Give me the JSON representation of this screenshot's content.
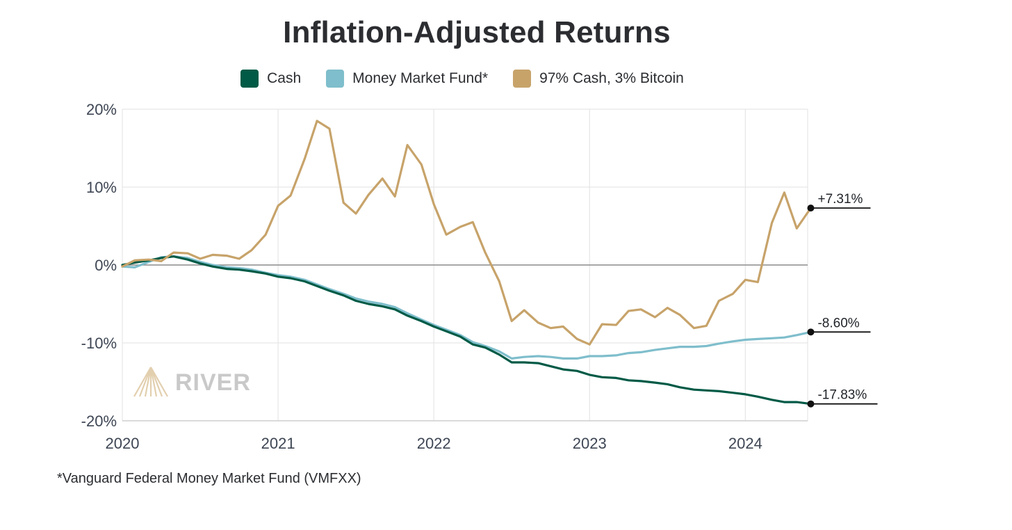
{
  "chart_data": {
    "type": "line",
    "title": "Inflation-Adjusted Returns",
    "xlabel": "",
    "ylabel": "",
    "ylim": [
      -20,
      20
    ],
    "xlim": [
      2020.0,
      2024.42
    ],
    "yticks": [
      {
        "value": 20,
        "label": "20%"
      },
      {
        "value": 10,
        "label": "10%"
      },
      {
        "value": 0,
        "label": "0%"
      },
      {
        "value": -10,
        "label": "-10%"
      },
      {
        "value": -20,
        "label": "-20%"
      }
    ],
    "xticks": [
      {
        "value": 2020,
        "label": "2020"
      },
      {
        "value": 2021,
        "label": "2021"
      },
      {
        "value": 2022,
        "label": "2022"
      },
      {
        "value": 2023,
        "label": "2023"
      },
      {
        "value": 2024,
        "label": "2024"
      }
    ],
    "legend_position": "top-center",
    "series": [
      {
        "name": "Cash",
        "color": "#005a46",
        "end_label": "-17.83%",
        "points": [
          [
            2020.0,
            0.0
          ],
          [
            2020.08,
            0.3
          ],
          [
            2020.17,
            0.6
          ],
          [
            2020.25,
            0.9
          ],
          [
            2020.33,
            1.1
          ],
          [
            2020.42,
            0.7
          ],
          [
            2020.5,
            0.2
          ],
          [
            2020.58,
            -0.2
          ],
          [
            2020.67,
            -0.5
          ],
          [
            2020.75,
            -0.6
          ],
          [
            2020.83,
            -0.8
          ],
          [
            2020.92,
            -1.1
          ],
          [
            2021.0,
            -1.5
          ],
          [
            2021.08,
            -1.7
          ],
          [
            2021.17,
            -2.1
          ],
          [
            2021.25,
            -2.7
          ],
          [
            2021.33,
            -3.3
          ],
          [
            2021.42,
            -3.9
          ],
          [
            2021.5,
            -4.6
          ],
          [
            2021.58,
            -5.0
          ],
          [
            2021.67,
            -5.3
          ],
          [
            2021.75,
            -5.7
          ],
          [
            2021.83,
            -6.5
          ],
          [
            2021.92,
            -7.2
          ],
          [
            2022.0,
            -7.9
          ],
          [
            2022.08,
            -8.5
          ],
          [
            2022.17,
            -9.2
          ],
          [
            2022.25,
            -10.2
          ],
          [
            2022.33,
            -10.6
          ],
          [
            2022.42,
            -11.5
          ],
          [
            2022.5,
            -12.5
          ],
          [
            2022.58,
            -12.5
          ],
          [
            2022.67,
            -12.6
          ],
          [
            2022.75,
            -13.0
          ],
          [
            2022.83,
            -13.4
          ],
          [
            2022.92,
            -13.6
          ],
          [
            2023.0,
            -14.1
          ],
          [
            2023.08,
            -14.4
          ],
          [
            2023.17,
            -14.5
          ],
          [
            2023.25,
            -14.8
          ],
          [
            2023.33,
            -14.9
          ],
          [
            2023.42,
            -15.1
          ],
          [
            2023.5,
            -15.3
          ],
          [
            2023.58,
            -15.7
          ],
          [
            2023.67,
            -16.0
          ],
          [
            2023.75,
            -16.1
          ],
          [
            2023.83,
            -16.2
          ],
          [
            2023.92,
            -16.4
          ],
          [
            2024.0,
            -16.6
          ],
          [
            2024.08,
            -16.9
          ],
          [
            2024.17,
            -17.3
          ],
          [
            2024.25,
            -17.6
          ],
          [
            2024.33,
            -17.6
          ],
          [
            2024.42,
            -17.83
          ]
        ]
      },
      {
        "name": "Money Market Fund*",
        "color": "#7fbecc",
        "end_label": "-8.60%",
        "points": [
          [
            2020.0,
            -0.2
          ],
          [
            2020.08,
            -0.3
          ],
          [
            2020.17,
            0.4
          ],
          [
            2020.25,
            1.0
          ],
          [
            2020.33,
            1.1
          ],
          [
            2020.42,
            0.9
          ],
          [
            2020.5,
            0.4
          ],
          [
            2020.58,
            0.0
          ],
          [
            2020.67,
            -0.3
          ],
          [
            2020.75,
            -0.4
          ],
          [
            2020.83,
            -0.6
          ],
          [
            2020.92,
            -1.0
          ],
          [
            2021.0,
            -1.3
          ],
          [
            2021.08,
            -1.5
          ],
          [
            2021.17,
            -1.9
          ],
          [
            2021.25,
            -2.5
          ],
          [
            2021.33,
            -3.1
          ],
          [
            2021.42,
            -3.7
          ],
          [
            2021.5,
            -4.3
          ],
          [
            2021.58,
            -4.7
          ],
          [
            2021.67,
            -5.0
          ],
          [
            2021.75,
            -5.4
          ],
          [
            2021.83,
            -6.2
          ],
          [
            2021.92,
            -7.0
          ],
          [
            2022.0,
            -7.7
          ],
          [
            2022.08,
            -8.3
          ],
          [
            2022.17,
            -9.0
          ],
          [
            2022.25,
            -9.9
          ],
          [
            2022.33,
            -10.4
          ],
          [
            2022.42,
            -11.1
          ],
          [
            2022.5,
            -12.0
          ],
          [
            2022.58,
            -11.8
          ],
          [
            2022.67,
            -11.7
          ],
          [
            2022.75,
            -11.8
          ],
          [
            2022.83,
            -12.0
          ],
          [
            2022.92,
            -12.0
          ],
          [
            2023.0,
            -11.7
          ],
          [
            2023.08,
            -11.7
          ],
          [
            2023.17,
            -11.6
          ],
          [
            2023.25,
            -11.3
          ],
          [
            2023.33,
            -11.2
          ],
          [
            2023.42,
            -10.9
          ],
          [
            2023.5,
            -10.7
          ],
          [
            2023.58,
            -10.5
          ],
          [
            2023.67,
            -10.5
          ],
          [
            2023.75,
            -10.4
          ],
          [
            2023.83,
            -10.1
          ],
          [
            2023.92,
            -9.8
          ],
          [
            2024.0,
            -9.6
          ],
          [
            2024.08,
            -9.5
          ],
          [
            2024.17,
            -9.4
          ],
          [
            2024.25,
            -9.3
          ],
          [
            2024.33,
            -9.0
          ],
          [
            2024.42,
            -8.6
          ]
        ]
      },
      {
        "name": "97% Cash, 3% Bitcoin",
        "color": "#c7a36a",
        "end_label": "+7.31%",
        "points": [
          [
            2020.0,
            -0.2
          ],
          [
            2020.08,
            0.6
          ],
          [
            2020.17,
            0.7
          ],
          [
            2020.25,
            0.5
          ],
          [
            2020.33,
            1.6
          ],
          [
            2020.42,
            1.5
          ],
          [
            2020.5,
            0.8
          ],
          [
            2020.58,
            1.3
          ],
          [
            2020.67,
            1.2
          ],
          [
            2020.75,
            0.8
          ],
          [
            2020.83,
            1.9
          ],
          [
            2020.92,
            3.9
          ],
          [
            2021.0,
            7.6
          ],
          [
            2021.08,
            8.9
          ],
          [
            2021.17,
            13.6
          ],
          [
            2021.25,
            18.5
          ],
          [
            2021.33,
            17.5
          ],
          [
            2021.42,
            8.0
          ],
          [
            2021.5,
            6.6
          ],
          [
            2021.58,
            9.0
          ],
          [
            2021.67,
            11.1
          ],
          [
            2021.75,
            8.8
          ],
          [
            2021.83,
            15.4
          ],
          [
            2021.92,
            12.9
          ],
          [
            2022.0,
            7.8
          ],
          [
            2022.08,
            3.9
          ],
          [
            2022.17,
            4.9
          ],
          [
            2022.25,
            5.5
          ],
          [
            2022.33,
            1.6
          ],
          [
            2022.42,
            -2.1
          ],
          [
            2022.5,
            -7.2
          ],
          [
            2022.58,
            -5.8
          ],
          [
            2022.67,
            -7.4
          ],
          [
            2022.75,
            -8.1
          ],
          [
            2022.83,
            -7.9
          ],
          [
            2022.92,
            -9.5
          ],
          [
            2023.0,
            -10.2
          ],
          [
            2023.08,
            -7.6
          ],
          [
            2023.17,
            -7.7
          ],
          [
            2023.25,
            -5.9
          ],
          [
            2023.33,
            -5.7
          ],
          [
            2023.42,
            -6.7
          ],
          [
            2023.5,
            -5.5
          ],
          [
            2023.58,
            -6.4
          ],
          [
            2023.67,
            -8.1
          ],
          [
            2023.75,
            -7.8
          ],
          [
            2023.83,
            -4.6
          ],
          [
            2023.92,
            -3.7
          ],
          [
            2024.0,
            -1.9
          ],
          [
            2024.08,
            -2.2
          ],
          [
            2024.17,
            5.4
          ],
          [
            2024.25,
            9.3
          ],
          [
            2024.33,
            4.7
          ],
          [
            2024.42,
            7.31
          ]
        ]
      }
    ]
  },
  "watermark": "RIVER",
  "footnote": "*Vanguard Federal Money Market Fund (VMFXX)"
}
